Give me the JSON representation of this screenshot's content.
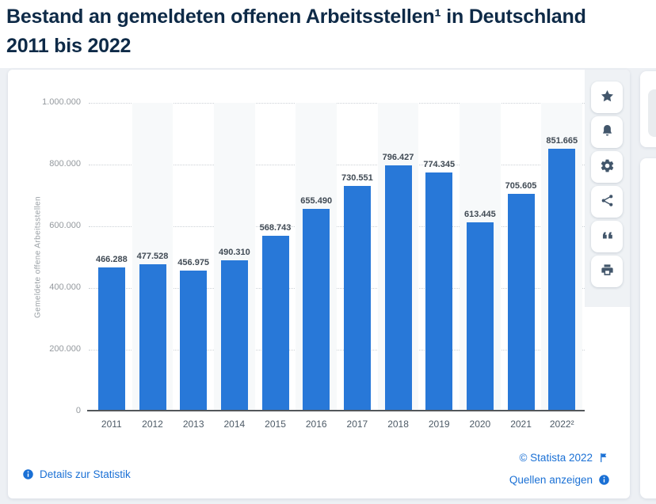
{
  "header": {
    "title_line1": "Bestand an gemeldeten offenen Arbeitsstellen¹ in Deutschland",
    "title_line2": "2011 bis 2022"
  },
  "chart_data": {
    "type": "bar",
    "title": "Bestand an gemeldeten offenen Arbeitsstellen in Deutschland 2011 bis 2022",
    "xlabel": "",
    "ylabel": "Gemeldete offene Arbeitsstellen",
    "ylim": [
      0,
      1000000
    ],
    "ytick_interval": 200000,
    "ytick_labels": [
      "1.000.000",
      "800.000",
      "600.000",
      "400.000",
      "200.000",
      "0"
    ],
    "grid": true,
    "legend": false,
    "bar_color": "#2878d8",
    "categories": [
      "2011",
      "2012",
      "2013",
      "2014",
      "2015",
      "2016",
      "2017",
      "2018",
      "2019",
      "2020",
      "2021",
      "2022²"
    ],
    "values": [
      466288,
      477528,
      456975,
      490310,
      568743,
      655490,
      730551,
      796427,
      774345,
      613445,
      705605,
      851665
    ],
    "value_labels": [
      "466.288",
      "477.528",
      "456.975",
      "490.310",
      "568.743",
      "655.490",
      "730.551",
      "796.427",
      "774.345",
      "613.445",
      "705.605",
      "851.665"
    ]
  },
  "toolbar": {
    "icons": [
      "star",
      "bell",
      "gear",
      "share",
      "quote",
      "print"
    ]
  },
  "footer": {
    "details_link": "Details zur Statistik",
    "copyright": "© Statista 2022",
    "sources_link": "Quellen anzeigen"
  },
  "colors": {
    "title": "#0e2a47",
    "bar": "#2878d8",
    "link": "#1a70d5",
    "value_label": "#404a54",
    "page_background": "#edf0f4"
  }
}
